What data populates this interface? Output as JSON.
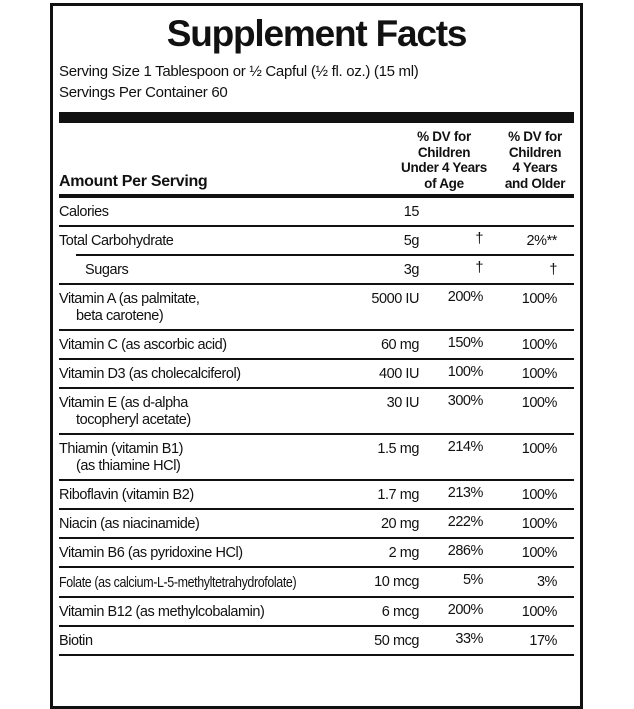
{
  "label": {
    "title": "Supplement Facts",
    "serving_size": "Serving Size 1 Tablespoon or ½ Capful (½ fl. oz.) (15 ml)",
    "servings_per_container": "Servings Per Container 60",
    "amount_header": "Amount Per Serving",
    "dv_column_1": [
      "% DV for",
      "Children",
      "Under 4 Years",
      "of Age"
    ],
    "dv_column_2": [
      "% DV for",
      "Children",
      "4 Years",
      "and Older"
    ],
    "colors": {
      "ink": "#111111",
      "background": "#ffffff"
    },
    "rows": [
      {
        "name": "Calories",
        "amount": "15",
        "dv1": "",
        "dv2": ""
      },
      {
        "name": "Total Carbohydrate",
        "amount": "5g",
        "dv1": "†",
        "dv2": "2%**"
      },
      {
        "name": "Sugars",
        "amount": "3g",
        "dv1": "†",
        "dv2": "†",
        "indent": true,
        "rule_indent": true
      },
      {
        "name": "Vitamin A (as palmitate,",
        "name_line2": "beta carotene)",
        "amount": "5000 IU",
        "dv1": "200%",
        "dv2": "100%"
      },
      {
        "name": "Vitamin C (as ascorbic acid)",
        "amount": "60 mg",
        "dv1": "150%",
        "dv2": "100%"
      },
      {
        "name": "Vitamin D3 (as cholecalciferol)",
        "amount": "400 IU",
        "dv1": "100%",
        "dv2": "100%"
      },
      {
        "name": "Vitamin E (as d-alpha",
        "name_line2": "tocopheryl acetate)",
        "amount": "30 IU",
        "dv1": "300%",
        "dv2": "100%"
      },
      {
        "name": "Thiamin (vitamin B1)",
        "name_line2": "(as thiamine HCl)",
        "amount": "1.5 mg",
        "dv1": "214%",
        "dv2": "100%"
      },
      {
        "name": "Riboflavin (vitamin B2)",
        "amount": "1.7 mg",
        "dv1": "213%",
        "dv2": "100%"
      },
      {
        "name": "Niacin (as niacinamide)",
        "amount": "20 mg",
        "dv1": "222%",
        "dv2": "100%"
      },
      {
        "name": "Vitamin B6 (as pyridoxine HCl)",
        "amount": "2 mg",
        "dv1": "286%",
        "dv2": "100%"
      },
      {
        "name": "Folate (as calcium-L-5-methyltetrahydrofolate)",
        "amount": "10 mcg",
        "dv1": "5%",
        "dv2": "3%",
        "condensed": true
      },
      {
        "name": "Vitamin B12 (as methylcobalamin)",
        "amount": "6 mcg",
        "dv1": "200%",
        "dv2": "100%"
      },
      {
        "name": "Biotin",
        "amount": "50 mcg",
        "dv1": "33%",
        "dv2": "17%"
      }
    ]
  }
}
